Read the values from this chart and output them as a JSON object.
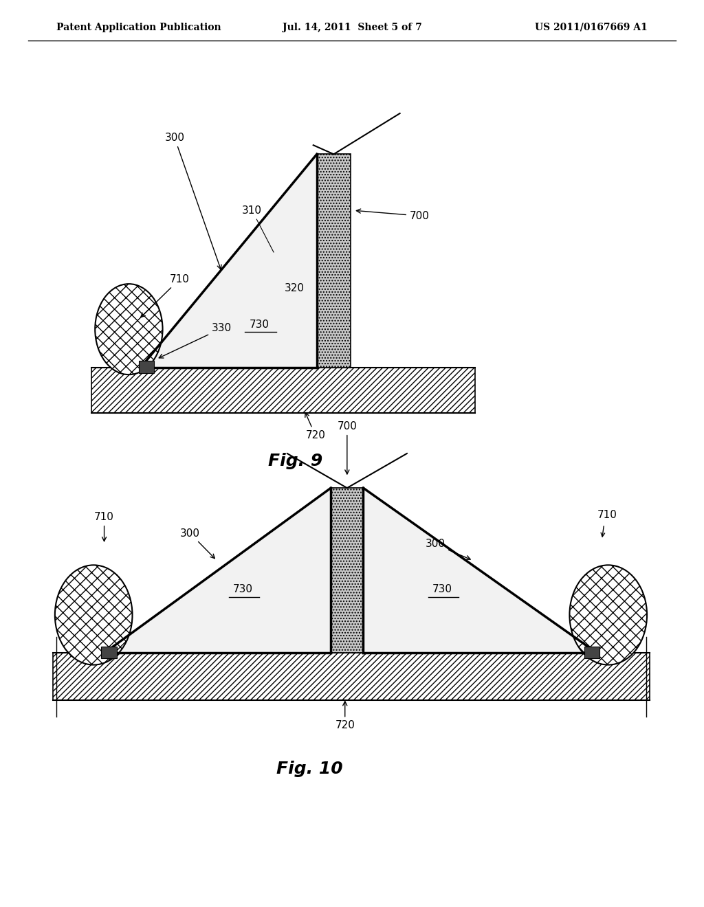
{
  "background_color": "#ffffff",
  "header_left": "Patent Application Publication",
  "header_mid": "Jul. 14, 2011  Sheet 5 of 7",
  "header_right": "US 2011/0167669 A1",
  "fig9_caption": "Fig. 9",
  "fig10_caption": "Fig. 10"
}
